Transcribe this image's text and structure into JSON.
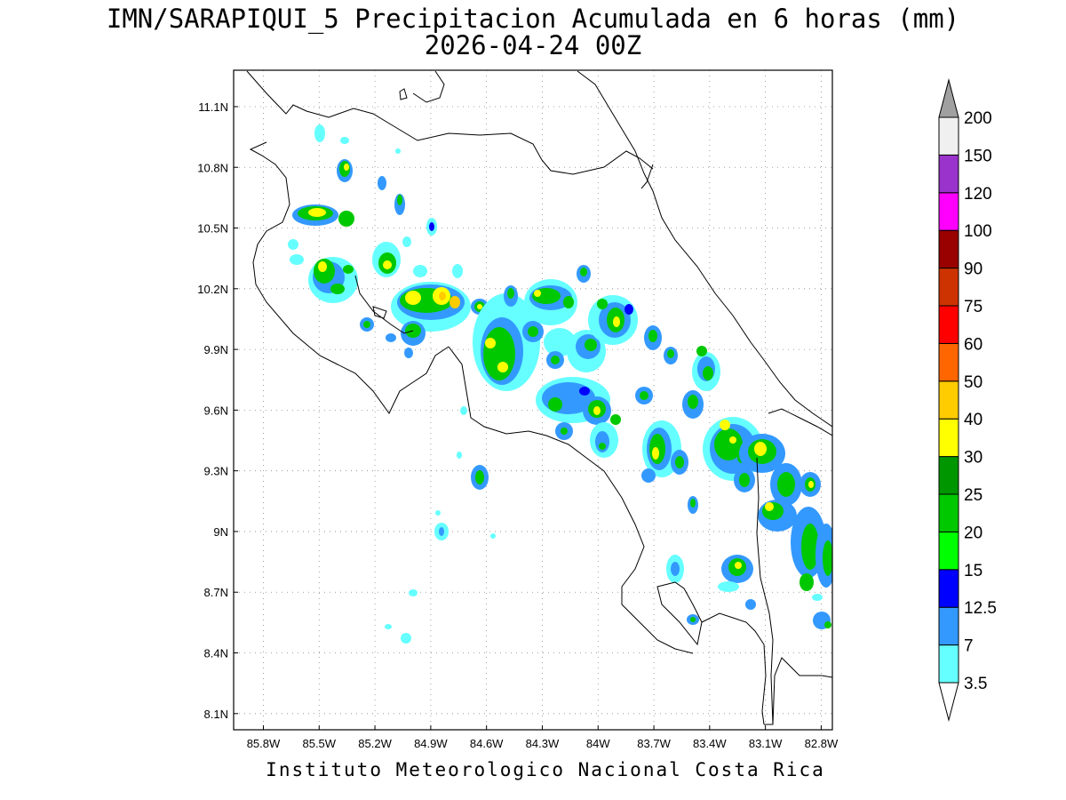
{
  "title_line1": "IMN/SARAPIQUI_5 Precipitacion Acumulada en 6 horas (mm)",
  "title_line2": "2026-04-24 00Z",
  "footer": "Instituto Meteorologico Nacional Costa Rica",
  "axes": {
    "lon_ticks": [
      "85.8W",
      "85.5W",
      "85.2W",
      "84.9W",
      "84.6W",
      "84.3W",
      "84W",
      "83.7W",
      "83.4W",
      "83.1W",
      "82.8W"
    ],
    "lat_ticks": [
      "11.1N",
      "10.8N",
      "10.5N",
      "10.2N",
      "9.9N",
      "9.6N",
      "9.3N",
      "9N",
      "8.7N",
      "8.4N",
      "8.1N"
    ],
    "lon_range": [
      -85.96,
      -82.74
    ],
    "lat_range": [
      8.02,
      11.28
    ],
    "grid": "dotted"
  },
  "colorbar": {
    "labels": [
      "3.5",
      "7",
      "12.5",
      "15",
      "20",
      "25",
      "30",
      "40",
      "50",
      "60",
      "75",
      "90",
      "100",
      "120",
      "150",
      "200"
    ],
    "colors": [
      "#66ffff",
      "#3399ff",
      "#0000ff",
      "#00ff00",
      "#00c800",
      "#009600",
      "#ffff00",
      "#ffcc00",
      "#ff6600",
      "#ff0000",
      "#cc3300",
      "#990000",
      "#ff00ff",
      "#9933cc",
      "#f0f0f0"
    ],
    "over_color": "#a0a0a0",
    "under_color": "#ffffff"
  }
}
